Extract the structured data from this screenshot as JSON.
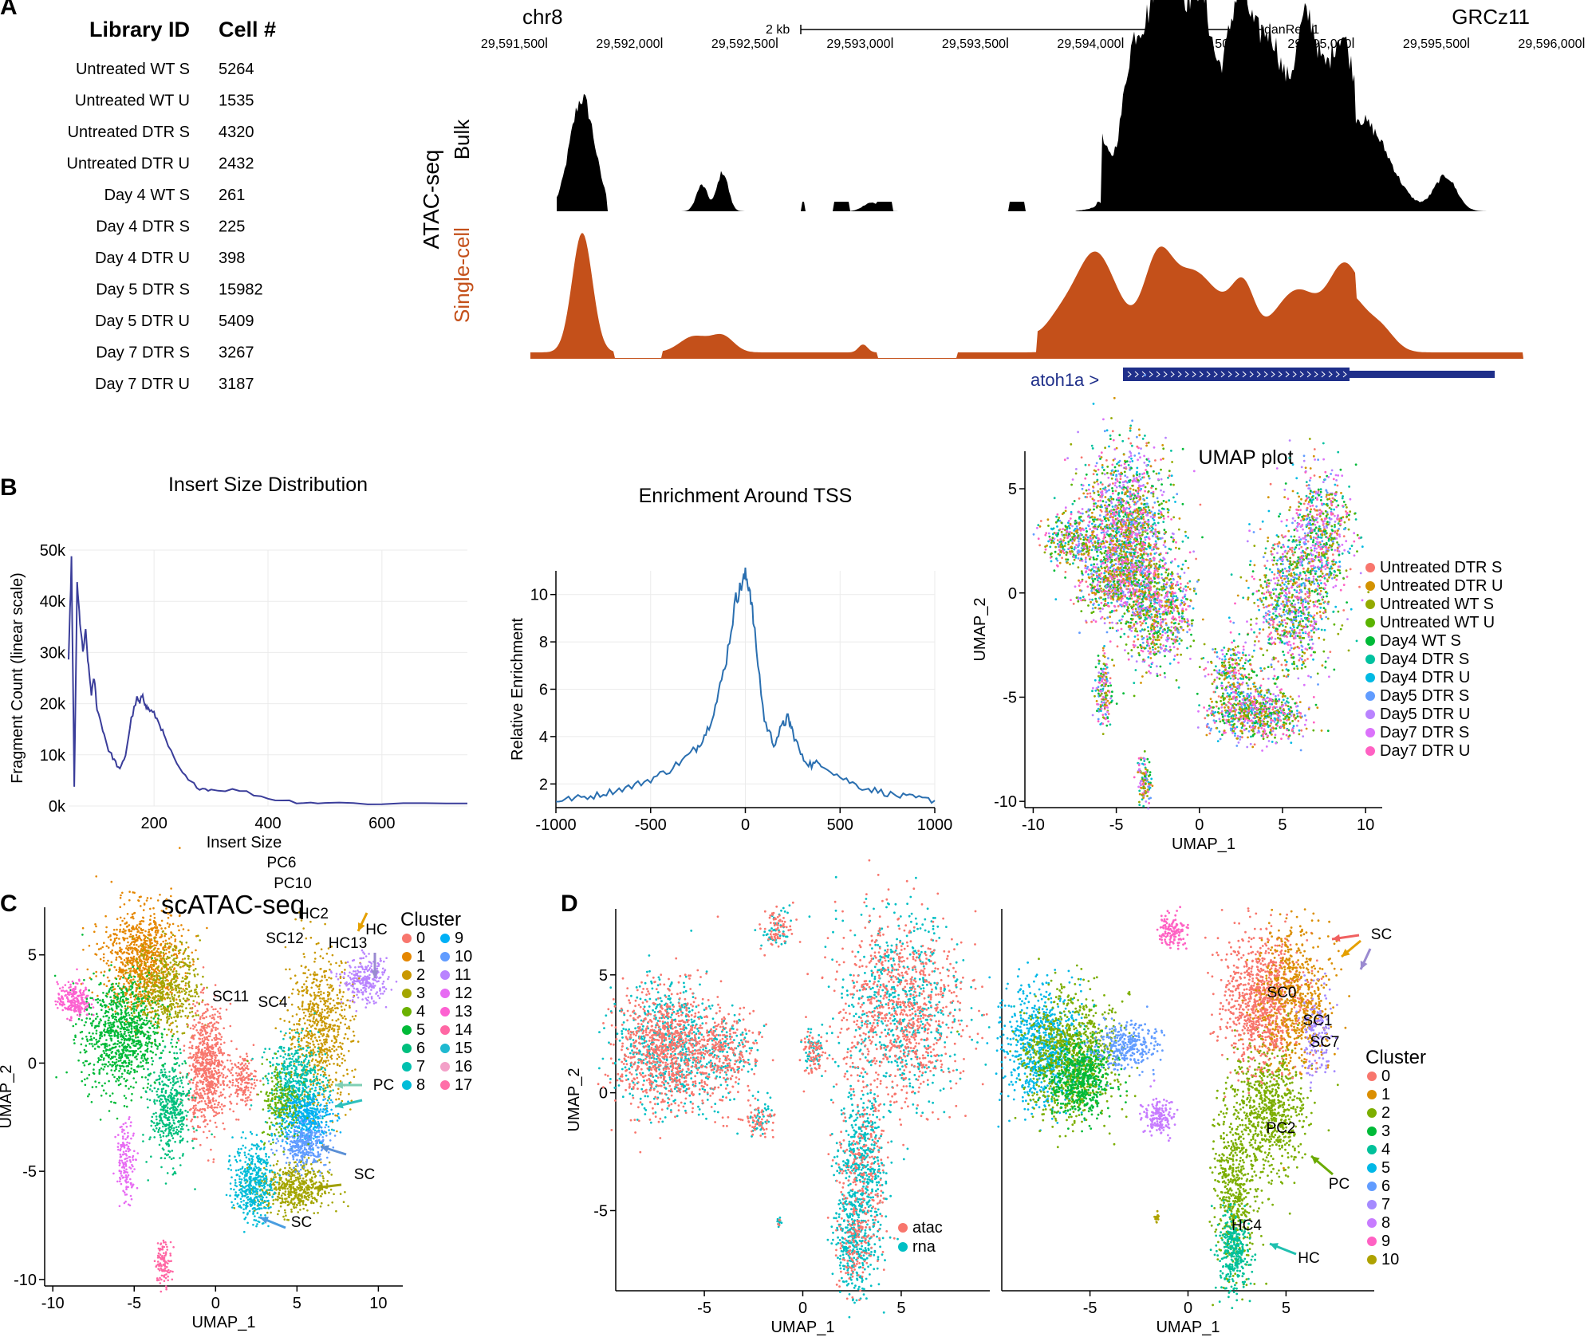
{
  "panels": {
    "A": "A",
    "B": "B",
    "C": "C",
    "D": "D"
  },
  "libraryTable": {
    "header": {
      "id": "Library ID",
      "cells": "Cell #"
    },
    "rows": [
      {
        "id": "Untreated WT S",
        "cells": "5264"
      },
      {
        "id": "Untreated WT U",
        "cells": "1535"
      },
      {
        "id": "Untreated DTR S",
        "cells": "4320"
      },
      {
        "id": "Untreated DTR U",
        "cells": "2432"
      },
      {
        "id": "Day 4 WT S",
        "cells": "261"
      },
      {
        "id": "Day 4 DTR S",
        "cells": "225"
      },
      {
        "id": "Day 4 DTR U",
        "cells": "398"
      },
      {
        "id": "Day 5 DTR S",
        "cells": "15982"
      },
      {
        "id": "Day 5 DTR U",
        "cells": "5409"
      },
      {
        "id": "Day 7 DTR S",
        "cells": "3267"
      },
      {
        "id": "Day 7 DTR U",
        "cells": "3187"
      }
    ]
  },
  "browser": {
    "chrom": "chr8",
    "assembly": "GRCz11",
    "scale": "2 kb",
    "db": "danRer11",
    "positions": [
      "29,591,500",
      "29,592,000",
      "29,592,500",
      "29,593,000",
      "29,593,500",
      "29,594,000",
      "29,594,500",
      "29,595,000",
      "29,595,500",
      "29,596,000"
    ],
    "trackGroup": "ATAC-seq",
    "bulk": "Bulk",
    "single": "Single-cell",
    "gene": "atoh1a >",
    "colors": {
      "bulk": "#000000",
      "single": "#c4501a",
      "gene": "#1f2f8a"
    }
  },
  "chart_data": [
    {
      "type": "line",
      "title": "Insert Size Distribution",
      "xlabel": "Insert Size",
      "ylabel": "Fragment Count (linear scale)",
      "xlim": [
        50,
        750
      ],
      "ylim": [
        0,
        50000
      ],
      "xticks": [
        "200",
        "400",
        "600"
      ],
      "yticks": [
        "0k",
        "10k",
        "20k",
        "30k",
        "40k",
        "50k"
      ],
      "x": [
        50,
        55,
        60,
        65,
        70,
        75,
        80,
        85,
        90,
        95,
        100,
        110,
        120,
        130,
        140,
        150,
        160,
        170,
        175,
        180,
        185,
        190,
        200,
        210,
        220,
        240,
        260,
        280,
        300,
        350,
        400,
        450,
        500,
        600,
        750
      ],
      "y": [
        28000,
        48000,
        3500,
        43000,
        36000,
        30000,
        34000,
        27000,
        22000,
        25000,
        19000,
        15000,
        11000,
        9000,
        7000,
        10000,
        17000,
        21000,
        20000,
        22000,
        19500,
        19000,
        18000,
        16000,
        13000,
        8000,
        5000,
        3500,
        3200,
        3100,
        1500,
        800,
        600,
        500,
        500
      ],
      "color": "#3a3d9a"
    },
    {
      "type": "line",
      "title": "Enrichment Around TSS",
      "ylabel": "Relative Enrichment",
      "xlim": [
        -1000,
        1000
      ],
      "ylim": [
        1,
        11
      ],
      "xticks": [
        "-1000",
        "-500",
        "0",
        "500",
        "1000"
      ],
      "yticks": [
        "2",
        "4",
        "6",
        "8",
        "10"
      ],
      "x": [
        -1000,
        -900,
        -800,
        -700,
        -600,
        -500,
        -400,
        -300,
        -250,
        -200,
        -150,
        -100,
        -50,
        -25,
        0,
        25,
        50,
        100,
        150,
        200,
        225,
        250,
        300,
        350,
        400,
        500,
        600,
        700,
        800,
        900,
        1000
      ],
      "y": [
        1.3,
        1.4,
        1.5,
        1.7,
        1.9,
        2.2,
        2.6,
        3.2,
        3.6,
        4.3,
        5.5,
        7.3,
        9.8,
        10.3,
        10.8,
        10.2,
        8.3,
        4.7,
        3.7,
        4.5,
        4.8,
        4.2,
        3.1,
        2.8,
        2.9,
        2.3,
        1.9,
        1.7,
        1.5,
        1.4,
        1.3
      ],
      "color": "#2a6fb0"
    },
    {
      "type": "scatter",
      "title": "UMAP plot",
      "xlabel": "UMAP_1",
      "ylabel": "UMAP_2",
      "xlim": [
        -10.5,
        11
      ],
      "ylim": [
        -10.3,
        6.8
      ],
      "xticks": [
        "-10",
        "-5",
        "0",
        "5",
        "10"
      ],
      "yticks": [
        "-10",
        "-5",
        "0",
        "5"
      ],
      "legend": [
        {
          "name": "Untreated DTR S",
          "color": "#f8766d"
        },
        {
          "name": "Untreated DTR U",
          "color": "#d39200"
        },
        {
          "name": "Untreated WT S",
          "color": "#93aa00"
        },
        {
          "name": "Untreated WT U",
          "color": "#5bb300"
        },
        {
          "name": "Day4 WT S",
          "color": "#00ba38"
        },
        {
          "name": "Day4 DTR S",
          "color": "#00c19f"
        },
        {
          "name": "Day4 DTR U",
          "color": "#00b9e3"
        },
        {
          "name": "Day5 DTR S",
          "color": "#619cff"
        },
        {
          "name": "Day5 DTR U",
          "color": "#b983ff"
        },
        {
          "name": "Day7 DTR S",
          "color": "#db72fb"
        },
        {
          "name": "Day7 DTR U",
          "color": "#ff61c3"
        }
      ]
    },
    {
      "type": "scatter",
      "title": "scATAC-seq",
      "xlabel": "UMAP_1",
      "ylabel": "UMAP_2",
      "xlim": [
        -10.5,
        11.5
      ],
      "ylim": [
        -10.3,
        7.2
      ],
      "xticks": [
        "-10",
        "-5",
        "0",
        "5",
        "10"
      ],
      "yticks": [
        "-10",
        "-5",
        "0",
        "5"
      ],
      "legendTitle": "Cluster",
      "legend": [
        {
          "name": "0",
          "color": "#f8766d"
        },
        {
          "name": "1",
          "color": "#e58700"
        },
        {
          "name": "2",
          "color": "#c99800"
        },
        {
          "name": "3",
          "color": "#a3a500"
        },
        {
          "name": "4",
          "color": "#6bb100"
        },
        {
          "name": "5",
          "color": "#00ba38"
        },
        {
          "name": "6",
          "color": "#00bf7d"
        },
        {
          "name": "7",
          "color": "#00c0af"
        },
        {
          "name": "8",
          "color": "#00bcd8"
        },
        {
          "name": "9",
          "color": "#00b0f6"
        },
        {
          "name": "10",
          "color": "#619cff"
        },
        {
          "name": "11",
          "color": "#b983ff"
        },
        {
          "name": "12",
          "color": "#e76bf3"
        },
        {
          "name": "13",
          "color": "#fd61d1"
        },
        {
          "name": "14",
          "color": "#ff67a4"
        },
        {
          "name": "15",
          "color": "#1fb9d0"
        },
        {
          "name": "16",
          "color": "#f3a0c8"
        },
        {
          "name": "17",
          "color": "#ff6fa8"
        }
      ],
      "labels": [
        "HC13",
        "HC2",
        "PC6",
        "PC10",
        "SC12",
        "SC11",
        "SC4"
      ],
      "arrowLabels": [
        "HC",
        "PC",
        "SC",
        "SC"
      ]
    },
    {
      "type": "scatter",
      "xlabel": "UMAP_1",
      "ylabel": "UMAP_2",
      "xlim": [
        -9.5,
        9.5
      ],
      "ylim": [
        -8.4,
        7.8
      ],
      "xticks": [
        "-5",
        "0",
        "5"
      ],
      "yticks": [
        "-5",
        "0",
        "5"
      ],
      "legend": [
        {
          "name": "atac",
          "color": "#f8766d"
        },
        {
          "name": "rna",
          "color": "#00bfc4"
        }
      ]
    },
    {
      "type": "scatter",
      "xlabel": "UMAP_1",
      "xlim": [
        -9.5,
        9.5
      ],
      "ylim": [
        -8.4,
        7.8
      ],
      "xticks": [
        "-5",
        "0",
        "5"
      ],
      "yticks": [
        "-5",
        "0",
        "5"
      ],
      "legendTitle": "Cluster",
      "legend": [
        {
          "name": "0",
          "color": "#f8766d"
        },
        {
          "name": "1",
          "color": "#db8e00"
        },
        {
          "name": "2",
          "color": "#7cae00"
        },
        {
          "name": "3",
          "color": "#00ba38"
        },
        {
          "name": "4",
          "color": "#00c19a"
        },
        {
          "name": "5",
          "color": "#00b8e7"
        },
        {
          "name": "6",
          "color": "#619cff"
        },
        {
          "name": "7",
          "color": "#a58aff"
        },
        {
          "name": "8",
          "color": "#c77cff"
        },
        {
          "name": "9",
          "color": "#ff61c3"
        },
        {
          "name": "10",
          "color": "#aea200"
        }
      ],
      "labels": [
        "SC0",
        "SC1",
        "SC7",
        "PC2",
        "HC4"
      ],
      "arrowLabels": [
        "SC",
        "PC",
        "HC"
      ]
    }
  ]
}
